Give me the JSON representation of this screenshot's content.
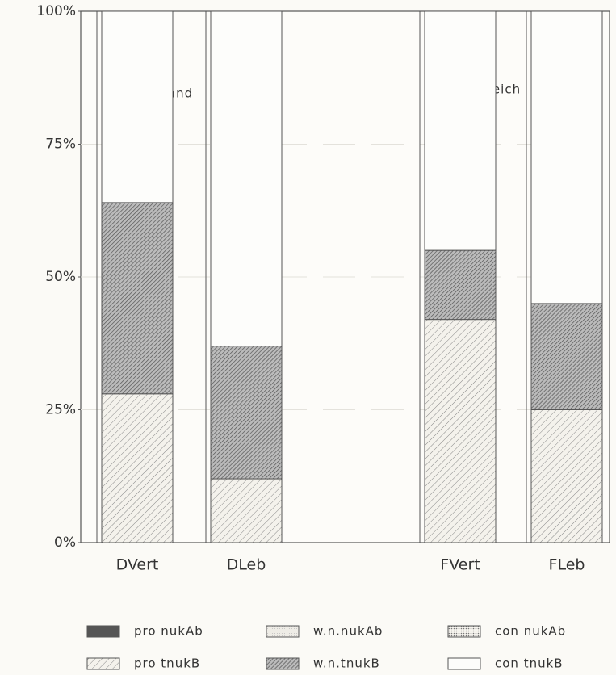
{
  "chart_data": {
    "type": "stacked_bar",
    "categories": [
      "DVert",
      "DLeb",
      "FVert",
      "FLeb"
    ],
    "annotations": [
      "Deutschland",
      "Frankreich"
    ],
    "ylim": [
      0,
      100
    ],
    "yticks": [
      {
        "value": 0,
        "label": "0%"
      },
      {
        "value": 25,
        "label": "25%"
      },
      {
        "value": 50,
        "label": "50%"
      },
      {
        "value": 75,
        "label": "75%"
      },
      {
        "value": 100,
        "label": "100%"
      }
    ],
    "grid": true,
    "series": [
      {
        "name": "pro nukAb",
        "color": "solid",
        "values": [
          0,
          0,
          0,
          0
        ]
      },
      {
        "name": "pro tnukB",
        "color": "hatch",
        "values": [
          28,
          12,
          42,
          25
        ]
      },
      {
        "name": "w.n.nukAb",
        "color": "fine",
        "values": [
          0,
          0,
          0,
          0
        ]
      },
      {
        "name": "w.n.tnukB",
        "color": "dense",
        "values": [
          36,
          25,
          13,
          20
        ]
      },
      {
        "name": "con nukAb",
        "color": "dots",
        "values": [
          0,
          0,
          0,
          0
        ]
      },
      {
        "name": "con tnukB",
        "color": "white",
        "values": [
          36,
          63,
          45,
          55
        ]
      }
    ]
  }
}
